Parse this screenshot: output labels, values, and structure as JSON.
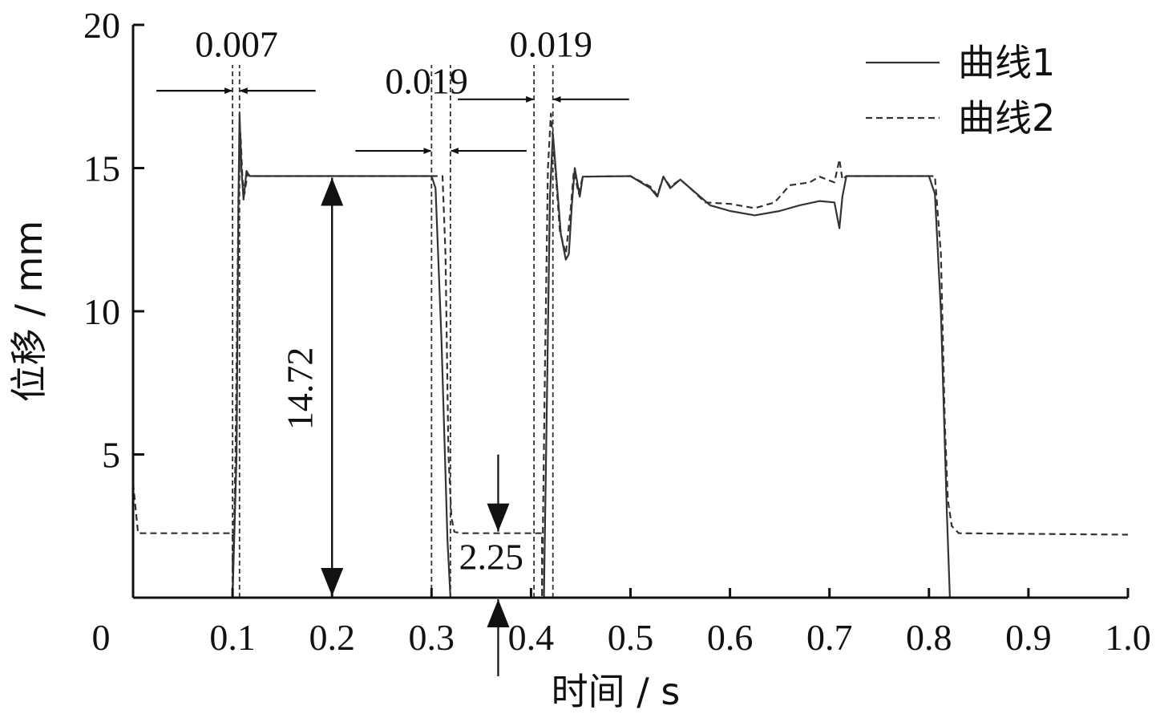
{
  "chart_data": {
    "type": "line",
    "xlabel": "时间 / s",
    "ylabel": "位移 / mm",
    "xlim": [
      0,
      1.0
    ],
    "ylim": [
      0,
      20
    ],
    "x_ticks": [
      "0",
      "0.1",
      "0.2",
      "0.3",
      "0.4",
      "0.5",
      "0.6",
      "0.7",
      "0.8",
      "0.9",
      "1.0"
    ],
    "x_tick_values": [
      0,
      0.1,
      0.2,
      0.3,
      0.4,
      0.5,
      0.6,
      0.7,
      0.8,
      0.9,
      1.0
    ],
    "y_ticks": [
      "5",
      "10",
      "15",
      "20"
    ],
    "y_tick_values": [
      5,
      10,
      15,
      20
    ],
    "legend_position": "top-right",
    "series": [
      {
        "name": "曲线1",
        "style": "solid",
        "color": "#333333",
        "points": [
          [
            0.0,
            0.0
          ],
          [
            0.1,
            0.0
          ],
          [
            0.104,
            5
          ],
          [
            0.106,
            14
          ],
          [
            0.107,
            16.9
          ],
          [
            0.109,
            14.9
          ],
          [
            0.111,
            13.9
          ],
          [
            0.114,
            14.9
          ],
          [
            0.117,
            14.72
          ],
          [
            0.3,
            14.72
          ],
          [
            0.304,
            14.3
          ],
          [
            0.31,
            9
          ],
          [
            0.316,
            2
          ],
          [
            0.319,
            0.0
          ],
          [
            0.413,
            0.0
          ],
          [
            0.416,
            7
          ],
          [
            0.419,
            14
          ],
          [
            0.422,
            16.2
          ],
          [
            0.425,
            14.9
          ],
          [
            0.43,
            12.7
          ],
          [
            0.435,
            11.8
          ],
          [
            0.438,
            12.0
          ],
          [
            0.441,
            13.7
          ],
          [
            0.444,
            15.0
          ],
          [
            0.449,
            14.0
          ],
          [
            0.452,
            14.7
          ],
          [
            0.5,
            14.72
          ],
          [
            0.52,
            14.3
          ],
          [
            0.527,
            14.0
          ],
          [
            0.533,
            14.7
          ],
          [
            0.54,
            14.3
          ],
          [
            0.55,
            14.6
          ],
          [
            0.56,
            14.3
          ],
          [
            0.58,
            13.7
          ],
          [
            0.6,
            13.5
          ],
          [
            0.625,
            13.35
          ],
          [
            0.65,
            13.5
          ],
          [
            0.67,
            13.7
          ],
          [
            0.69,
            13.85
          ],
          [
            0.705,
            13.8
          ],
          [
            0.71,
            12.9
          ],
          [
            0.713,
            14.0
          ],
          [
            0.717,
            14.72
          ],
          [
            0.8,
            14.72
          ],
          [
            0.806,
            14.1
          ],
          [
            0.812,
            10
          ],
          [
            0.818,
            3
          ],
          [
            0.821,
            0.0
          ],
          [
            1.0,
            0.0
          ]
        ]
      },
      {
        "name": "曲线2",
        "style": "dashed",
        "color": "#333333",
        "points": [
          [
            0.0,
            4.0
          ],
          [
            0.005,
            2.25
          ],
          [
            0.1,
            2.25
          ],
          [
            0.1,
            0.0
          ],
          [
            0.103,
            5
          ],
          [
            0.106,
            14
          ],
          [
            0.108,
            16.2
          ],
          [
            0.11,
            14.6
          ],
          [
            0.112,
            14.1
          ],
          [
            0.115,
            14.8
          ],
          [
            0.118,
            14.72
          ],
          [
            0.311,
            14.72
          ],
          [
            0.314,
            12
          ],
          [
            0.317,
            5
          ],
          [
            0.32,
            2.8
          ],
          [
            0.323,
            2.3
          ],
          [
            0.33,
            2.25
          ],
          [
            0.411,
            2.25
          ],
          [
            0.411,
            0.0
          ],
          [
            0.414,
            8
          ],
          [
            0.417,
            15
          ],
          [
            0.42,
            16.9
          ],
          [
            0.424,
            15.2
          ],
          [
            0.429,
            12.8
          ],
          [
            0.435,
            12.0
          ],
          [
            0.44,
            13.6
          ],
          [
            0.443,
            14.9
          ],
          [
            0.448,
            14.1
          ],
          [
            0.452,
            14.7
          ],
          [
            0.5,
            14.72
          ],
          [
            0.52,
            14.35
          ],
          [
            0.527,
            14.05
          ],
          [
            0.533,
            14.7
          ],
          [
            0.54,
            14.35
          ],
          [
            0.55,
            14.6
          ],
          [
            0.56,
            14.3
          ],
          [
            0.575,
            13.8
          ],
          [
            0.6,
            13.75
          ],
          [
            0.625,
            13.6
          ],
          [
            0.645,
            13.8
          ],
          [
            0.66,
            14.4
          ],
          [
            0.68,
            14.5
          ],
          [
            0.69,
            14.7
          ],
          [
            0.705,
            14.5
          ],
          [
            0.71,
            15.3
          ],
          [
            0.713,
            14.6
          ],
          [
            0.717,
            14.72
          ],
          [
            0.806,
            14.72
          ],
          [
            0.812,
            12
          ],
          [
            0.816,
            6
          ],
          [
            0.819,
            3.4
          ],
          [
            0.823,
            2.5
          ],
          [
            0.83,
            2.25
          ],
          [
            1.0,
            2.2
          ]
        ]
      }
    ],
    "annotations": [
      {
        "label": "0.007",
        "type": "horizontal-gap",
        "x1": 0.1,
        "x2": 0.107,
        "y": 17.7,
        "label_x": 0.104,
        "label_y": 18.9
      },
      {
        "label": "0.019",
        "type": "horizontal-gap",
        "x1": 0.3,
        "x2": 0.319,
        "y": 15.6,
        "label_x": 0.295,
        "label_y": 17.6
      },
      {
        "label": "0.019",
        "type": "horizontal-gap",
        "x1": 0.403,
        "x2": 0.422,
        "y": 17.4,
        "label_x": 0.42,
        "label_y": 18.9
      },
      {
        "label": "14.72",
        "type": "vertical-span",
        "x": 0.2,
        "y1": 0,
        "y2": 14.72,
        "label_x": 0.18,
        "label_y": 7.3
      },
      {
        "label": "2.25",
        "type": "vertical-pair",
        "x": 0.367,
        "y_upper": 2.25,
        "y_lower": 0,
        "label_x": 0.36,
        "label_y": 1.0
      }
    ],
    "guide_lines": [
      0.1,
      0.107,
      0.3,
      0.319,
      0.403,
      0.422
    ]
  }
}
